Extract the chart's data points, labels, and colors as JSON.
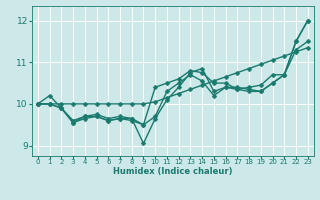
{
  "title": "",
  "xlabel": "Humidex (Indice chaleur)",
  "bg_color": "#cce8e8",
  "grid_color": "#ffffff",
  "line_color": "#1a7a6e",
  "marker": "D",
  "markersize": 2.5,
  "linewidth": 1.0,
  "xlim": [
    -0.5,
    23.5
  ],
  "ylim": [
    8.75,
    12.35
  ],
  "yticks": [
    9,
    10,
    11,
    12
  ],
  "xticks": [
    0,
    1,
    2,
    3,
    4,
    5,
    6,
    7,
    8,
    9,
    10,
    11,
    12,
    13,
    14,
    15,
    16,
    17,
    18,
    19,
    20,
    21,
    22,
    23
  ],
  "series": [
    [
      10.0,
      10.2,
      9.9,
      9.55,
      9.7,
      9.7,
      9.6,
      9.65,
      9.6,
      9.5,
      9.7,
      10.3,
      10.5,
      10.7,
      10.55,
      10.2,
      10.4,
      10.4,
      10.35,
      10.3,
      10.5,
      10.7,
      11.5,
      12.0
    ],
    [
      10.0,
      10.0,
      9.9,
      9.55,
      9.65,
      9.7,
      9.6,
      9.65,
      9.65,
      9.05,
      9.65,
      10.1,
      10.4,
      10.75,
      10.85,
      10.3,
      10.4,
      10.35,
      10.3,
      10.3,
      10.5,
      10.7,
      11.5,
      12.0
    ],
    [
      10.0,
      10.0,
      9.9,
      9.6,
      9.7,
      9.75,
      9.65,
      9.7,
      9.65,
      9.5,
      10.4,
      10.5,
      10.6,
      10.8,
      10.75,
      10.5,
      10.5,
      10.35,
      10.4,
      10.45,
      10.7,
      10.7,
      11.3,
      11.5
    ],
    [
      10.0,
      10.0,
      10.0,
      10.0,
      10.0,
      10.0,
      10.0,
      10.0,
      10.0,
      10.0,
      10.05,
      10.15,
      10.25,
      10.35,
      10.45,
      10.55,
      10.65,
      10.75,
      10.85,
      10.95,
      11.05,
      11.15,
      11.25,
      11.35
    ]
  ]
}
